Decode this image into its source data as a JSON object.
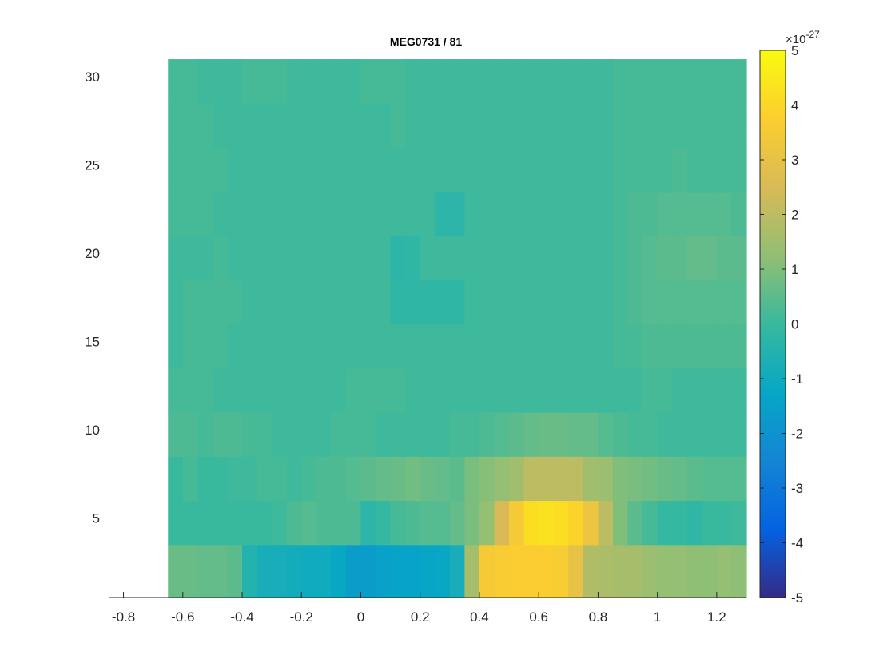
{
  "chart_data": {
    "type": "heatmap",
    "title": "MEG0731 / 81",
    "xlabel": "",
    "ylabel": "",
    "xlim": [
      -0.85,
      1.3
    ],
    "ylim": [
      0.5,
      31.5
    ],
    "x_ticks": [
      "-0.8",
      "-0.6",
      "-0.4",
      "-0.2",
      "0",
      "0.2",
      "0.4",
      "0.6",
      "0.8",
      "1",
      "1.2"
    ],
    "x_tick_values": [
      -0.8,
      -0.6,
      -0.4,
      -0.2,
      0,
      0.2,
      0.4,
      0.6,
      0.8,
      1,
      1.2
    ],
    "y_ticks": [
      "5",
      "10",
      "15",
      "20",
      "25",
      "30"
    ],
    "y_tick_values": [
      5,
      10,
      15,
      20,
      25,
      30
    ],
    "time_range": [
      -0.65,
      1.3
    ],
    "time_step": 0.05,
    "freq_bands": [
      {
        "y0": 0.5,
        "y1": 3.5
      },
      {
        "y0": 3.5,
        "y1": 6.0
      },
      {
        "y0": 6.0,
        "y1": 8.5
      },
      {
        "y0": 8.5,
        "y1": 11.0
      },
      {
        "y0": 11.0,
        "y1": 13.5
      },
      {
        "y0": 13.5,
        "y1": 16.0
      },
      {
        "y0": 16.0,
        "y1": 18.5
      },
      {
        "y0": 18.5,
        "y1": 21.0
      },
      {
        "y0": 21.0,
        "y1": 23.5
      },
      {
        "y0": 23.5,
        "y1": 26.0
      },
      {
        "y0": 26.0,
        "y1": 28.5
      },
      {
        "y0": 28.5,
        "y1": 31.0
      }
    ],
    "values_1e-27": [
      [
        0.7,
        0.7,
        0.6,
        0.6,
        0.5,
        -0.5,
        -0.8,
        -0.8,
        -0.9,
        -1.0,
        -1.0,
        -1.2,
        -1.6,
        -1.6,
        -1.5,
        -1.4,
        -1.4,
        -1.3,
        -1.2,
        -0.8,
        1.6,
        3.5,
        3.6,
        3.7,
        3.7,
        3.7,
        3.6,
        3.0,
        1.8,
        1.7,
        1.6,
        1.6,
        1.4,
        1.3,
        1.3,
        1.2,
        1.2,
        1.3,
        1.2
      ],
      [
        0,
        0,
        0,
        0,
        0,
        0,
        0,
        0.1,
        0.3,
        0.4,
        0.3,
        0.3,
        0.3,
        -0.3,
        -0.1,
        0.2,
        0.3,
        0.4,
        0.4,
        0.6,
        0.9,
        1.3,
        2.5,
        3.5,
        4.2,
        4.3,
        4.2,
        3.9,
        3.2,
        2.0,
        1.0,
        0.5,
        0.2,
        -0.1,
        -0.1,
        -0.2,
        0,
        0,
        0.1
      ],
      [
        0,
        0.2,
        0,
        0,
        0.1,
        0.1,
        0.2,
        0.2,
        0.1,
        0.2,
        0.3,
        0.3,
        0.4,
        0.5,
        0.6,
        0.7,
        0.8,
        0.7,
        0.6,
        0.5,
        0.9,
        1.1,
        1.3,
        1.5,
        2.0,
        2.0,
        2.0,
        2.0,
        1.5,
        1.4,
        1.0,
        0.9,
        0.8,
        0.7,
        0.6,
        0.5,
        0.4,
        0.4,
        0.4
      ],
      [
        0.3,
        0.3,
        0.2,
        0.3,
        0.3,
        0.2,
        0.2,
        0.1,
        0.1,
        0.1,
        0.1,
        0.2,
        0.2,
        0.2,
        0.1,
        0.1,
        0.1,
        0.1,
        0.1,
        0.2,
        0.2,
        0.3,
        0.4,
        0.5,
        0.6,
        0.7,
        0.7,
        0.6,
        0.6,
        0.4,
        0.3,
        0.2,
        0.2,
        0.1,
        0.1,
        0.1,
        0.1,
        0.1,
        0.1
      ],
      [
        0.2,
        0.2,
        0.2,
        0.1,
        0.1,
        0.1,
        0.1,
        0.1,
        0.1,
        0.1,
        0.1,
        0.1,
        0.2,
        0.2,
        0.2,
        0.2,
        0.1,
        0.1,
        0.1,
        0.1,
        0.1,
        0.1,
        0.1,
        0.1,
        0.1,
        0.1,
        0.1,
        0.1,
        0.1,
        0.1,
        0.1,
        0.1,
        0.2,
        0.2,
        0.1,
        0.1,
        0.1,
        0.1,
        0.1
      ],
      [
        0.1,
        0.2,
        0.2,
        0.2,
        0.1,
        0.1,
        0.1,
        0.1,
        0.1,
        0.1,
        0.1,
        0.1,
        0.1,
        0.1,
        0.1,
        0.1,
        0.1,
        0.1,
        0.1,
        0.1,
        0.1,
        0.1,
        0.1,
        0.1,
        0.1,
        0.1,
        0.1,
        0.1,
        0.1,
        0.1,
        0.2,
        0.2,
        0.3,
        0.3,
        0.3,
        0.3,
        0.3,
        0.3,
        0.3
      ],
      [
        0.1,
        0.2,
        0.2,
        0.2,
        0.2,
        0.1,
        0.1,
        0.1,
        0.1,
        0.1,
        0.1,
        0.1,
        0.1,
        0.1,
        0.1,
        -0.2,
        -0.2,
        -0.2,
        -0.2,
        -0.2,
        0.1,
        0.1,
        0.1,
        0.1,
        0.1,
        0.1,
        0.1,
        0.1,
        0.1,
        0.1,
        0.2,
        0.3,
        0.4,
        0.4,
        0.4,
        0.4,
        0.4,
        0.4,
        0.4
      ],
      [
        0.1,
        0.1,
        0.1,
        0.2,
        0.1,
        0.1,
        0.1,
        0.1,
        0.1,
        0.1,
        0.1,
        0.1,
        0.1,
        0.1,
        0.1,
        -0.3,
        -0.2,
        0.1,
        0.1,
        0.1,
        0.1,
        0.1,
        0.1,
        0.1,
        0.1,
        0.1,
        0.1,
        0.1,
        0.1,
        0.1,
        0.2,
        0.3,
        0.4,
        0.5,
        0.5,
        0.6,
        0.6,
        0.5,
        0.5
      ],
      [
        0.2,
        0.2,
        0.2,
        0.1,
        0.1,
        0.1,
        0.1,
        0.1,
        0.1,
        0.1,
        0.1,
        0.1,
        0.1,
        0.1,
        0.1,
        0.1,
        0.1,
        0.1,
        -0.3,
        -0.3,
        0.1,
        0.1,
        0.1,
        0.1,
        0.1,
        0.1,
        0.1,
        0.1,
        0.1,
        0.1,
        0.2,
        0.3,
        0.3,
        0.4,
        0.4,
        0.4,
        0.4,
        0.4,
        0.3
      ],
      [
        0.2,
        0.2,
        0.2,
        0.2,
        0.1,
        0.1,
        0.1,
        0.1,
        0.1,
        0.1,
        0.1,
        0.1,
        0.1,
        0.1,
        0.1,
        0.1,
        0.1,
        0.1,
        0.1,
        0.1,
        0.1,
        0.1,
        0.1,
        0.1,
        0.1,
        0.1,
        0.1,
        0.1,
        0.1,
        0.1,
        0.2,
        0.2,
        0.2,
        0.2,
        0.3,
        0.2,
        0.2,
        0.2,
        0.2
      ],
      [
        0.2,
        0.2,
        0.2,
        0.1,
        0.1,
        0.1,
        0.1,
        0.1,
        0.1,
        0.1,
        0.1,
        0.1,
        0.1,
        0.1,
        0.1,
        0.2,
        0.1,
        0.1,
        0.1,
        0.1,
        0.1,
        0.1,
        0.1,
        0.1,
        0.1,
        0.1,
        0.1,
        0.1,
        0.1,
        0.1,
        0.2,
        0.2,
        0.2,
        0.2,
        0.2,
        0.2,
        0.2,
        0.2,
        0.2
      ],
      [
        0.2,
        0.2,
        0.1,
        0.1,
        0.1,
        0.2,
        0.2,
        0.2,
        0.1,
        0.1,
        0.1,
        0.1,
        0.1,
        0.2,
        0.2,
        0.2,
        0.1,
        0.1,
        0.1,
        0.1,
        0.1,
        0.1,
        0.1,
        0.1,
        0.1,
        0.1,
        0.1,
        0.1,
        0.1,
        0.1,
        0.2,
        0.2,
        0.2,
        0.2,
        0.2,
        0.2,
        0.2,
        0.2,
        0.2
      ]
    ],
    "colorbar": {
      "colormap": "parula",
      "clim": [
        -5,
        5
      ],
      "ticks": [
        "-5",
        "-4",
        "-3",
        "-2",
        "-1",
        "0",
        "1",
        "2",
        "3",
        "4",
        "5"
      ],
      "tick_values": [
        -5,
        -4,
        -3,
        -2,
        -1,
        0,
        1,
        2,
        3,
        4,
        5
      ],
      "exponent_base": "×10",
      "exponent": "-27"
    },
    "colormap_stops": [
      "#352a87",
      "#0363e1",
      "#1485d4",
      "#06a7c6",
      "#38b99e",
      "#92bf73",
      "#d9ba56",
      "#fcce2e",
      "#f9fb0e"
    ]
  }
}
